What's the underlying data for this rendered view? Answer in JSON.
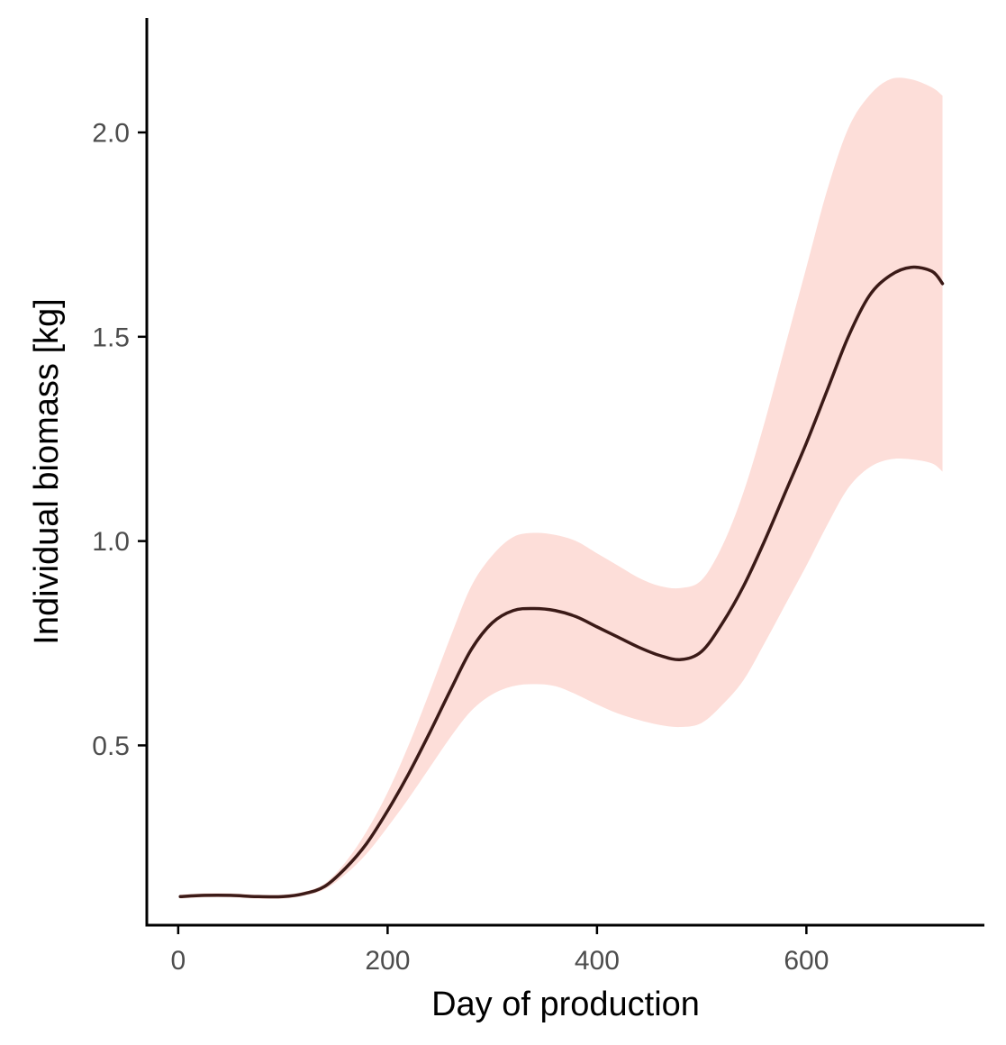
{
  "chart_data": {
    "type": "line",
    "title": "",
    "xlabel": "Day of production",
    "ylabel": "Individual biomass [kg]",
    "xlim": [
      -30,
      770
    ],
    "ylim": [
      0.06,
      2.28
    ],
    "x_ticks": [
      0,
      200,
      400,
      600
    ],
    "x_tick_labels": [
      "0",
      "200",
      "400",
      "600"
    ],
    "y_ticks": [
      0.5,
      1.0,
      1.5,
      2.0
    ],
    "y_tick_labels": [
      "0.5",
      "1.0",
      "1.5",
      "2.0"
    ],
    "grid": false,
    "legend": "none",
    "colors": {
      "line": "#3b1a17",
      "ribbon": "#fdded9",
      "axis": "#000000",
      "tick_label": "#4d4d4d"
    },
    "series": [
      {
        "x": [
          2,
          25,
          50,
          75,
          100,
          120,
          140,
          160,
          180,
          200,
          220,
          240,
          260,
          280,
          300,
          320,
          340,
          360,
          380,
          400,
          420,
          440,
          460,
          480,
          500,
          520,
          540,
          560,
          580,
          600,
          620,
          640,
          660,
          680,
          700,
          720,
          730
        ],
        "y": [
          0.13,
          0.133,
          0.133,
          0.13,
          0.13,
          0.137,
          0.155,
          0.2,
          0.26,
          0.34,
          0.43,
          0.53,
          0.635,
          0.735,
          0.8,
          0.83,
          0.835,
          0.83,
          0.815,
          0.79,
          0.765,
          0.74,
          0.72,
          0.71,
          0.73,
          0.8,
          0.89,
          1.0,
          1.12,
          1.24,
          1.37,
          1.5,
          1.6,
          1.65,
          1.67,
          1.66,
          1.63
        ]
      }
    ],
    "ribbon": {
      "x": [
        2,
        25,
        50,
        75,
        100,
        120,
        140,
        160,
        180,
        200,
        220,
        240,
        260,
        280,
        300,
        320,
        340,
        360,
        380,
        400,
        420,
        440,
        460,
        480,
        500,
        520,
        540,
        560,
        580,
        600,
        620,
        640,
        660,
        680,
        700,
        720,
        730
      ],
      "lower": [
        0.125,
        0.128,
        0.128,
        0.125,
        0.125,
        0.132,
        0.148,
        0.185,
        0.235,
        0.3,
        0.37,
        0.445,
        0.52,
        0.585,
        0.625,
        0.645,
        0.65,
        0.645,
        0.625,
        0.6,
        0.578,
        0.562,
        0.55,
        0.545,
        0.555,
        0.6,
        0.66,
        0.75,
        0.845,
        0.94,
        1.04,
        1.13,
        1.18,
        1.2,
        1.2,
        1.19,
        1.17
      ],
      "upper": [
        0.135,
        0.138,
        0.138,
        0.135,
        0.135,
        0.142,
        0.162,
        0.215,
        0.29,
        0.385,
        0.5,
        0.63,
        0.765,
        0.89,
        0.965,
        1.01,
        1.02,
        1.015,
        1.0,
        0.97,
        0.94,
        0.91,
        0.89,
        0.885,
        0.905,
        0.99,
        1.12,
        1.29,
        1.48,
        1.67,
        1.86,
        2.01,
        2.09,
        2.13,
        2.13,
        2.11,
        2.09
      ]
    }
  }
}
